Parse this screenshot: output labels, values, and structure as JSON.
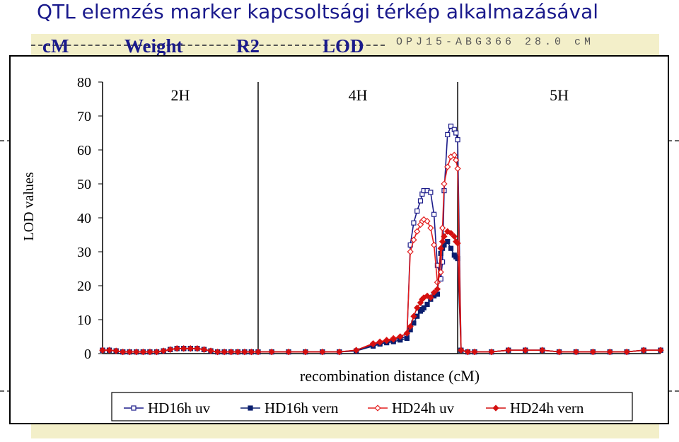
{
  "slide": {
    "title": "QTL elemzés marker kapcsoltsági térkép alkalmazásával",
    "background_headers": [
      "cM",
      "Weight",
      "R2",
      "LOD"
    ],
    "background_marker": "OPJ15-ABG366 28.0 cM"
  },
  "chart_data": {
    "type": "line",
    "ylabel": "LOD values",
    "xlabel": "recombination distance (cM)",
    "ylim": [
      0,
      80
    ],
    "yticks": [
      0,
      10,
      20,
      30,
      40,
      50,
      60,
      70,
      80
    ],
    "xlim": [
      0,
      165
    ],
    "grid": false,
    "legend_position": "bottom",
    "regions": [
      {
        "label": "2H",
        "start": 0,
        "end": 46
      },
      {
        "label": "4H",
        "start": 46,
        "end": 105
      },
      {
        "label": "5H",
        "start": 105,
        "end": 165
      }
    ],
    "series": [
      {
        "name": "HD16h uv",
        "color": "#1c1c8a",
        "marker": "square-open",
        "x": [
          0,
          2,
          4,
          6,
          8,
          10,
          12,
          14,
          16,
          18,
          20,
          22,
          24,
          26,
          28,
          30,
          32,
          34,
          36,
          38,
          40,
          42,
          44,
          46,
          50,
          55,
          60,
          65,
          70,
          75,
          80,
          82,
          84,
          86,
          88,
          90,
          91,
          92,
          93,
          94,
          94.5,
          95,
          96,
          97,
          98,
          99,
          100,
          100.5,
          101,
          102,
          103,
          104,
          104.5,
          105,
          106,
          108,
          110,
          115,
          120,
          125,
          130,
          135,
          140,
          145,
          150,
          155,
          160,
          165
        ],
        "values": [
          1,
          1,
          0.8,
          0.5,
          0.5,
          0.5,
          0.5,
          0.5,
          0.5,
          0.8,
          1.2,
          1.5,
          1.5,
          1.5,
          1.5,
          1.2,
          0.8,
          0.5,
          0.5,
          0.5,
          0.5,
          0.5,
          0.5,
          0.5,
          0.5,
          0.5,
          0.5,
          0.5,
          0.5,
          0.8,
          2.5,
          3,
          3.5,
          4,
          4.5,
          5,
          32,
          38.5,
          42,
          45,
          47,
          48,
          48,
          47.5,
          41,
          26,
          22,
          27,
          48,
          64.5,
          67,
          66,
          65,
          63,
          1,
          0.5,
          0.5,
          0.5,
          1,
          1,
          1,
          0.5,
          0.5,
          0.5,
          0.5,
          0.5,
          1,
          1
        ]
      },
      {
        "name": "HD16h vern",
        "color": "#0b1f6e",
        "marker": "square-filled",
        "x": [
          0,
          2,
          4,
          6,
          8,
          10,
          12,
          14,
          16,
          18,
          20,
          22,
          24,
          26,
          28,
          30,
          32,
          34,
          36,
          38,
          40,
          42,
          44,
          46,
          50,
          55,
          60,
          65,
          70,
          75,
          80,
          82,
          84,
          86,
          88,
          90,
          91,
          92,
          93,
          94,
          94.5,
          95,
          96,
          97,
          98,
          99,
          100,
          100.5,
          101,
          102,
          103,
          104,
          104.5,
          105,
          106,
          108,
          110,
          115,
          120,
          125,
          130,
          135,
          140,
          145,
          150,
          155,
          160,
          165
        ],
        "values": [
          1,
          1,
          0.8,
          0.5,
          0.5,
          0.5,
          0.5,
          0.5,
          0.5,
          0.8,
          1.2,
          1.5,
          1.5,
          1.5,
          1.5,
          1.2,
          0.8,
          0.5,
          0.5,
          0.5,
          0.5,
          0.5,
          0.5,
          0.5,
          0.5,
          0.5,
          0.5,
          0.5,
          0.5,
          0.8,
          2.2,
          2.8,
          3.2,
          3.5,
          4,
          4.5,
          7,
          9,
          11,
          12.5,
          13,
          13.5,
          14.5,
          16,
          17,
          17.5,
          29.5,
          31,
          32,
          33,
          31,
          29,
          28.5,
          28,
          1,
          0.5,
          0.5,
          0.5,
          1,
          1,
          1,
          0.5,
          0.5,
          0.5,
          0.5,
          0.5,
          1,
          1
        ]
      },
      {
        "name": "HD24h uv",
        "color": "#e31e1e",
        "marker": "diamond-open",
        "x": [
          0,
          2,
          4,
          6,
          8,
          10,
          12,
          14,
          16,
          18,
          20,
          22,
          24,
          26,
          28,
          30,
          32,
          34,
          36,
          38,
          40,
          42,
          44,
          46,
          50,
          55,
          60,
          65,
          70,
          75,
          80,
          82,
          84,
          86,
          88,
          90,
          91,
          92,
          93,
          94,
          94.5,
          95,
          96,
          97,
          98,
          99,
          100,
          100.5,
          101,
          102,
          103,
          104,
          104.5,
          105,
          106,
          108,
          110,
          115,
          120,
          125,
          130,
          135,
          140,
          145,
          150,
          155,
          160,
          165
        ],
        "values": [
          1,
          1,
          0.8,
          0.5,
          0.5,
          0.5,
          0.5,
          0.5,
          0.5,
          0.8,
          1.2,
          1.5,
          1.5,
          1.5,
          1.5,
          1.2,
          0.8,
          0.5,
          0.5,
          0.5,
          0.5,
          0.5,
          0.5,
          0.5,
          0.5,
          0.5,
          0.5,
          0.5,
          0.5,
          1,
          3,
          3.5,
          4,
          4.5,
          5,
          6,
          30,
          33.5,
          36,
          38,
          39,
          39.5,
          39,
          37,
          32,
          21,
          24,
          37,
          50,
          55,
          58,
          58.5,
          57,
          54.5,
          1,
          0.5,
          0.5,
          0.5,
          1,
          1,
          1,
          0.5,
          0.5,
          0.5,
          0.5,
          0.5,
          1,
          1
        ]
      },
      {
        "name": "HD24h vern",
        "color": "#d41010",
        "marker": "diamond-filled",
        "x": [
          0,
          2,
          4,
          6,
          8,
          10,
          12,
          14,
          16,
          18,
          20,
          22,
          24,
          26,
          28,
          30,
          32,
          34,
          36,
          38,
          40,
          42,
          44,
          46,
          50,
          55,
          60,
          65,
          70,
          75,
          80,
          82,
          84,
          86,
          88,
          90,
          91,
          92,
          93,
          94,
          94.5,
          95,
          96,
          97,
          98,
          99,
          100,
          100.5,
          101,
          102,
          103,
          104,
          104.5,
          105,
          106,
          108,
          110,
          115,
          120,
          125,
          130,
          135,
          140,
          145,
          150,
          155,
          160,
          165
        ],
        "values": [
          1,
          1,
          0.8,
          0.5,
          0.5,
          0.5,
          0.5,
          0.5,
          0.5,
          0.8,
          1.2,
          1.5,
          1.5,
          1.5,
          1.5,
          1.2,
          0.8,
          0.5,
          0.5,
          0.5,
          0.5,
          0.5,
          0.5,
          0.5,
          0.5,
          0.5,
          0.5,
          0.5,
          0.5,
          1,
          2.8,
          3.3,
          3.8,
          4.2,
          5,
          6,
          8,
          11,
          13.5,
          15,
          16,
          16.5,
          17,
          16.5,
          18,
          19,
          31,
          33,
          34.5,
          36,
          35.5,
          34.5,
          33,
          32.5,
          1,
          0.5,
          0.5,
          0.5,
          1,
          1,
          1,
          0.5,
          0.5,
          0.5,
          0.5,
          0.5,
          1,
          1
        ]
      }
    ]
  }
}
